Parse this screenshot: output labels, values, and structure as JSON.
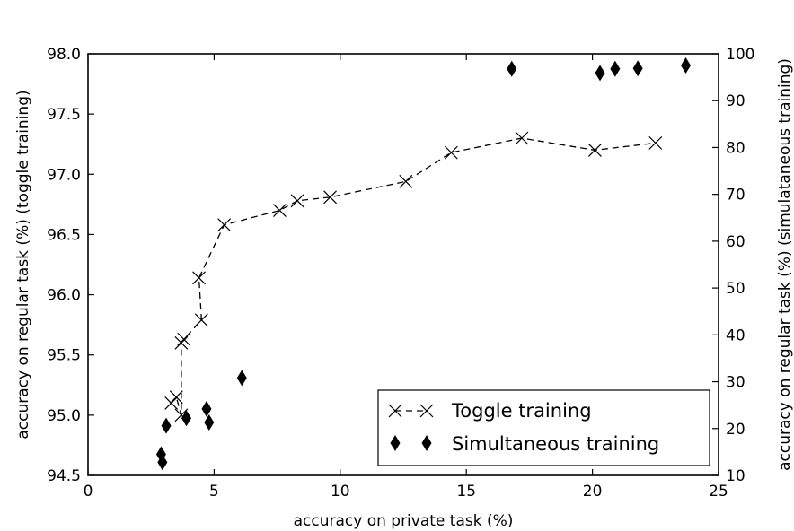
{
  "chart_data": {
    "type": "line",
    "xlabel": "accuracy on private task (%)",
    "ylabel_left": "accuracy on regular task  (%) (toggle training)",
    "ylabel_right": "accuracy on regular task  (%) (simulataneous training)",
    "xlim": [
      0,
      25
    ],
    "ylim_left": [
      94.5,
      98.0
    ],
    "ylim_right": [
      10,
      100
    ],
    "x_ticks": [
      0,
      5,
      10,
      15,
      20,
      25
    ],
    "y_ticks_left": [
      94.5,
      95.0,
      95.5,
      96.0,
      96.5,
      97.0,
      97.5,
      98.0
    ],
    "y_ticks_right": [
      10,
      20,
      30,
      40,
      50,
      60,
      70,
      80,
      90,
      100
    ],
    "x_tick_labels": [
      "0",
      "5",
      "10",
      "15",
      "20",
      "25"
    ],
    "y_tick_labels_left": [
      "94.5",
      "95.0",
      "95.5",
      "96.0",
      "96.5",
      "97.0",
      "97.5",
      "98.0"
    ],
    "y_tick_labels_right": [
      "10",
      "20",
      "30",
      "40",
      "50",
      "60",
      "70",
      "80",
      "90",
      "100"
    ],
    "grid": false,
    "legend_position": "bottom-right",
    "series": [
      {
        "name": "Toggle training",
        "axis": "left",
        "marker": "x",
        "line_style": "dashed",
        "color": "#000000",
        "points": [
          [
            3.3,
            95.1
          ],
          [
            3.5,
            95.15
          ],
          [
            3.7,
            95.0
          ],
          [
            3.7,
            95.6
          ],
          [
            3.8,
            95.63
          ],
          [
            4.5,
            95.79
          ],
          [
            4.4,
            96.14
          ],
          [
            5.4,
            96.58
          ],
          [
            7.6,
            96.7
          ],
          [
            8.3,
            96.78
          ],
          [
            9.6,
            96.81
          ],
          [
            12.6,
            96.94
          ],
          [
            14.4,
            97.18
          ],
          [
            17.2,
            97.3
          ],
          [
            20.1,
            97.2
          ],
          [
            22.5,
            97.26
          ]
        ]
      },
      {
        "name": "Simultaneous training",
        "axis": "right",
        "marker": "diamond",
        "line_style": "none",
        "color": "#000000",
        "points": [
          [
            2.9,
            14.5
          ],
          [
            2.95,
            12.8
          ],
          [
            3.1,
            20.6
          ],
          [
            3.9,
            22.2
          ],
          [
            4.7,
            24.2
          ],
          [
            4.8,
            21.3
          ],
          [
            6.1,
            30.8
          ],
          [
            16.8,
            96.8
          ],
          [
            20.3,
            95.9
          ],
          [
            20.9,
            96.8
          ],
          [
            21.8,
            96.9
          ],
          [
            23.7,
            97.5
          ]
        ]
      }
    ]
  }
}
